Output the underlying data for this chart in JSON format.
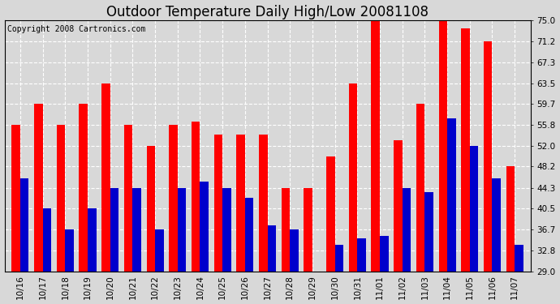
{
  "title": "Outdoor Temperature Daily High/Low 20081108",
  "copyright": "Copyright 2008 Cartronics.com",
  "dates": [
    "10/16",
    "10/17",
    "10/18",
    "10/19",
    "10/20",
    "10/21",
    "10/22",
    "10/23",
    "10/24",
    "10/25",
    "10/26",
    "10/27",
    "10/28",
    "10/29",
    "10/30",
    "10/31",
    "11/01",
    "11/02",
    "11/03",
    "11/04",
    "11/05",
    "11/06",
    "11/07"
  ],
  "highs": [
    55.8,
    59.7,
    55.8,
    59.7,
    63.5,
    55.8,
    52.0,
    55.8,
    56.5,
    54.0,
    54.0,
    54.0,
    44.3,
    44.3,
    50.0,
    63.5,
    75.0,
    53.0,
    59.7,
    75.0,
    73.5,
    71.2,
    48.2
  ],
  "lows": [
    46.0,
    40.5,
    36.7,
    40.5,
    44.3,
    44.3,
    36.7,
    44.3,
    45.5,
    44.3,
    42.5,
    37.5,
    36.7,
    29.0,
    33.8,
    35.0,
    35.5,
    44.3,
    43.5,
    57.0,
    52.0,
    46.0,
    33.8
  ],
  "ylim_min": 29.0,
  "ylim_max": 75.0,
  "yticks": [
    29.0,
    32.8,
    36.7,
    40.5,
    44.3,
    48.2,
    52.0,
    55.8,
    59.7,
    63.5,
    67.3,
    71.2,
    75.0
  ],
  "high_color": "#ff0000",
  "low_color": "#0000cc",
  "bg_color": "#d8d8d8",
  "plot_bg_color": "#d8d8d8",
  "grid_color": "#ffffff",
  "bar_width": 0.38,
  "title_fontsize": 12,
  "tick_fontsize": 7.5,
  "copyright_fontsize": 7
}
